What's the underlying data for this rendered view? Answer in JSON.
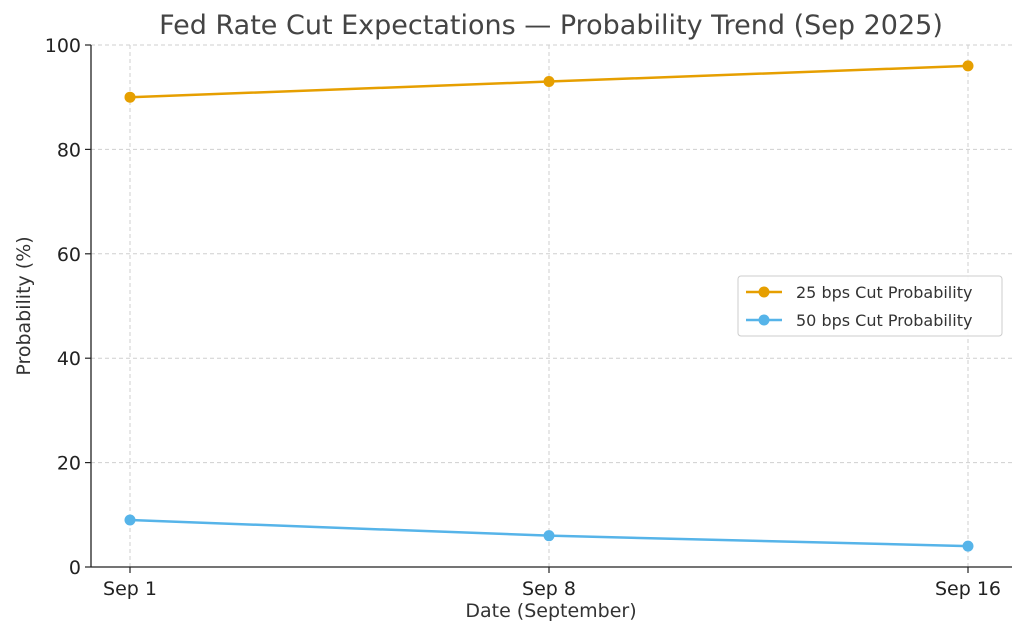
{
  "chart_data": {
    "type": "line",
    "title": "Fed Rate Cut Expectations — Probability Trend (Sep 2025)",
    "xlabel": "Date (September)",
    "ylabel": "Probability (%)",
    "categories": [
      "Sep 1",
      "Sep 8",
      "Sep 16"
    ],
    "x": [
      1,
      8,
      16
    ],
    "ylim": [
      0,
      100
    ],
    "yticks": [
      "0",
      "20",
      "40",
      "60",
      "80",
      "100"
    ],
    "grid": true,
    "legend_position": "center-right",
    "series": [
      {
        "name": "25 bps Cut Probability",
        "color": "#E69F00",
        "values": [
          90,
          93,
          96
        ]
      },
      {
        "name": "50 bps Cut Probability",
        "color": "#56B4E9",
        "values": [
          9,
          6,
          4
        ]
      }
    ]
  }
}
